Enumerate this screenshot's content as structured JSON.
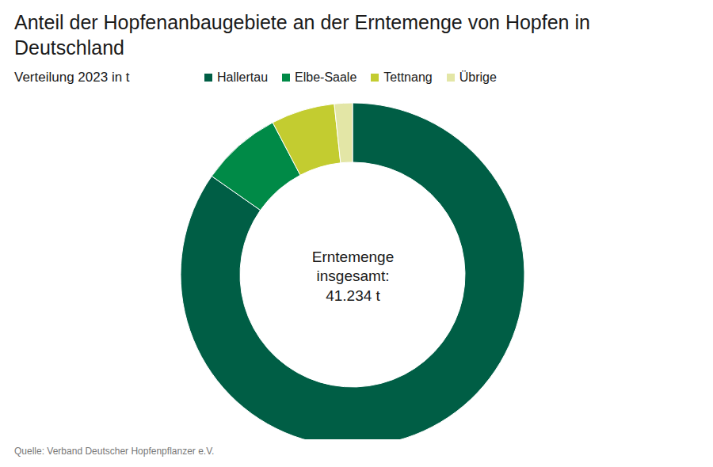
{
  "chart_data": {
    "type": "donut",
    "title": "Anteil der Hopfenanbaugebiete an der Erntemenge von Hopfen in Deutschland",
    "subtitle": "Verteilung 2023 in t",
    "categories": [
      "Hallertau",
      "Elbe-Saale",
      "Tettnang",
      "Übrige"
    ],
    "values": [
      34934,
      3130,
      2470,
      700
    ],
    "colors": [
      "#005e45",
      "#008a47",
      "#c3cc30",
      "#e3e6a6"
    ],
    "total_title": "Erntemenge insgesamt:",
    "total": {
      "value": 41234,
      "label": "41.234 t"
    },
    "legend": "top",
    "data_labels": false,
    "source": "Quelle: Verband Deutscher Hopfenpflanzer e.V."
  }
}
